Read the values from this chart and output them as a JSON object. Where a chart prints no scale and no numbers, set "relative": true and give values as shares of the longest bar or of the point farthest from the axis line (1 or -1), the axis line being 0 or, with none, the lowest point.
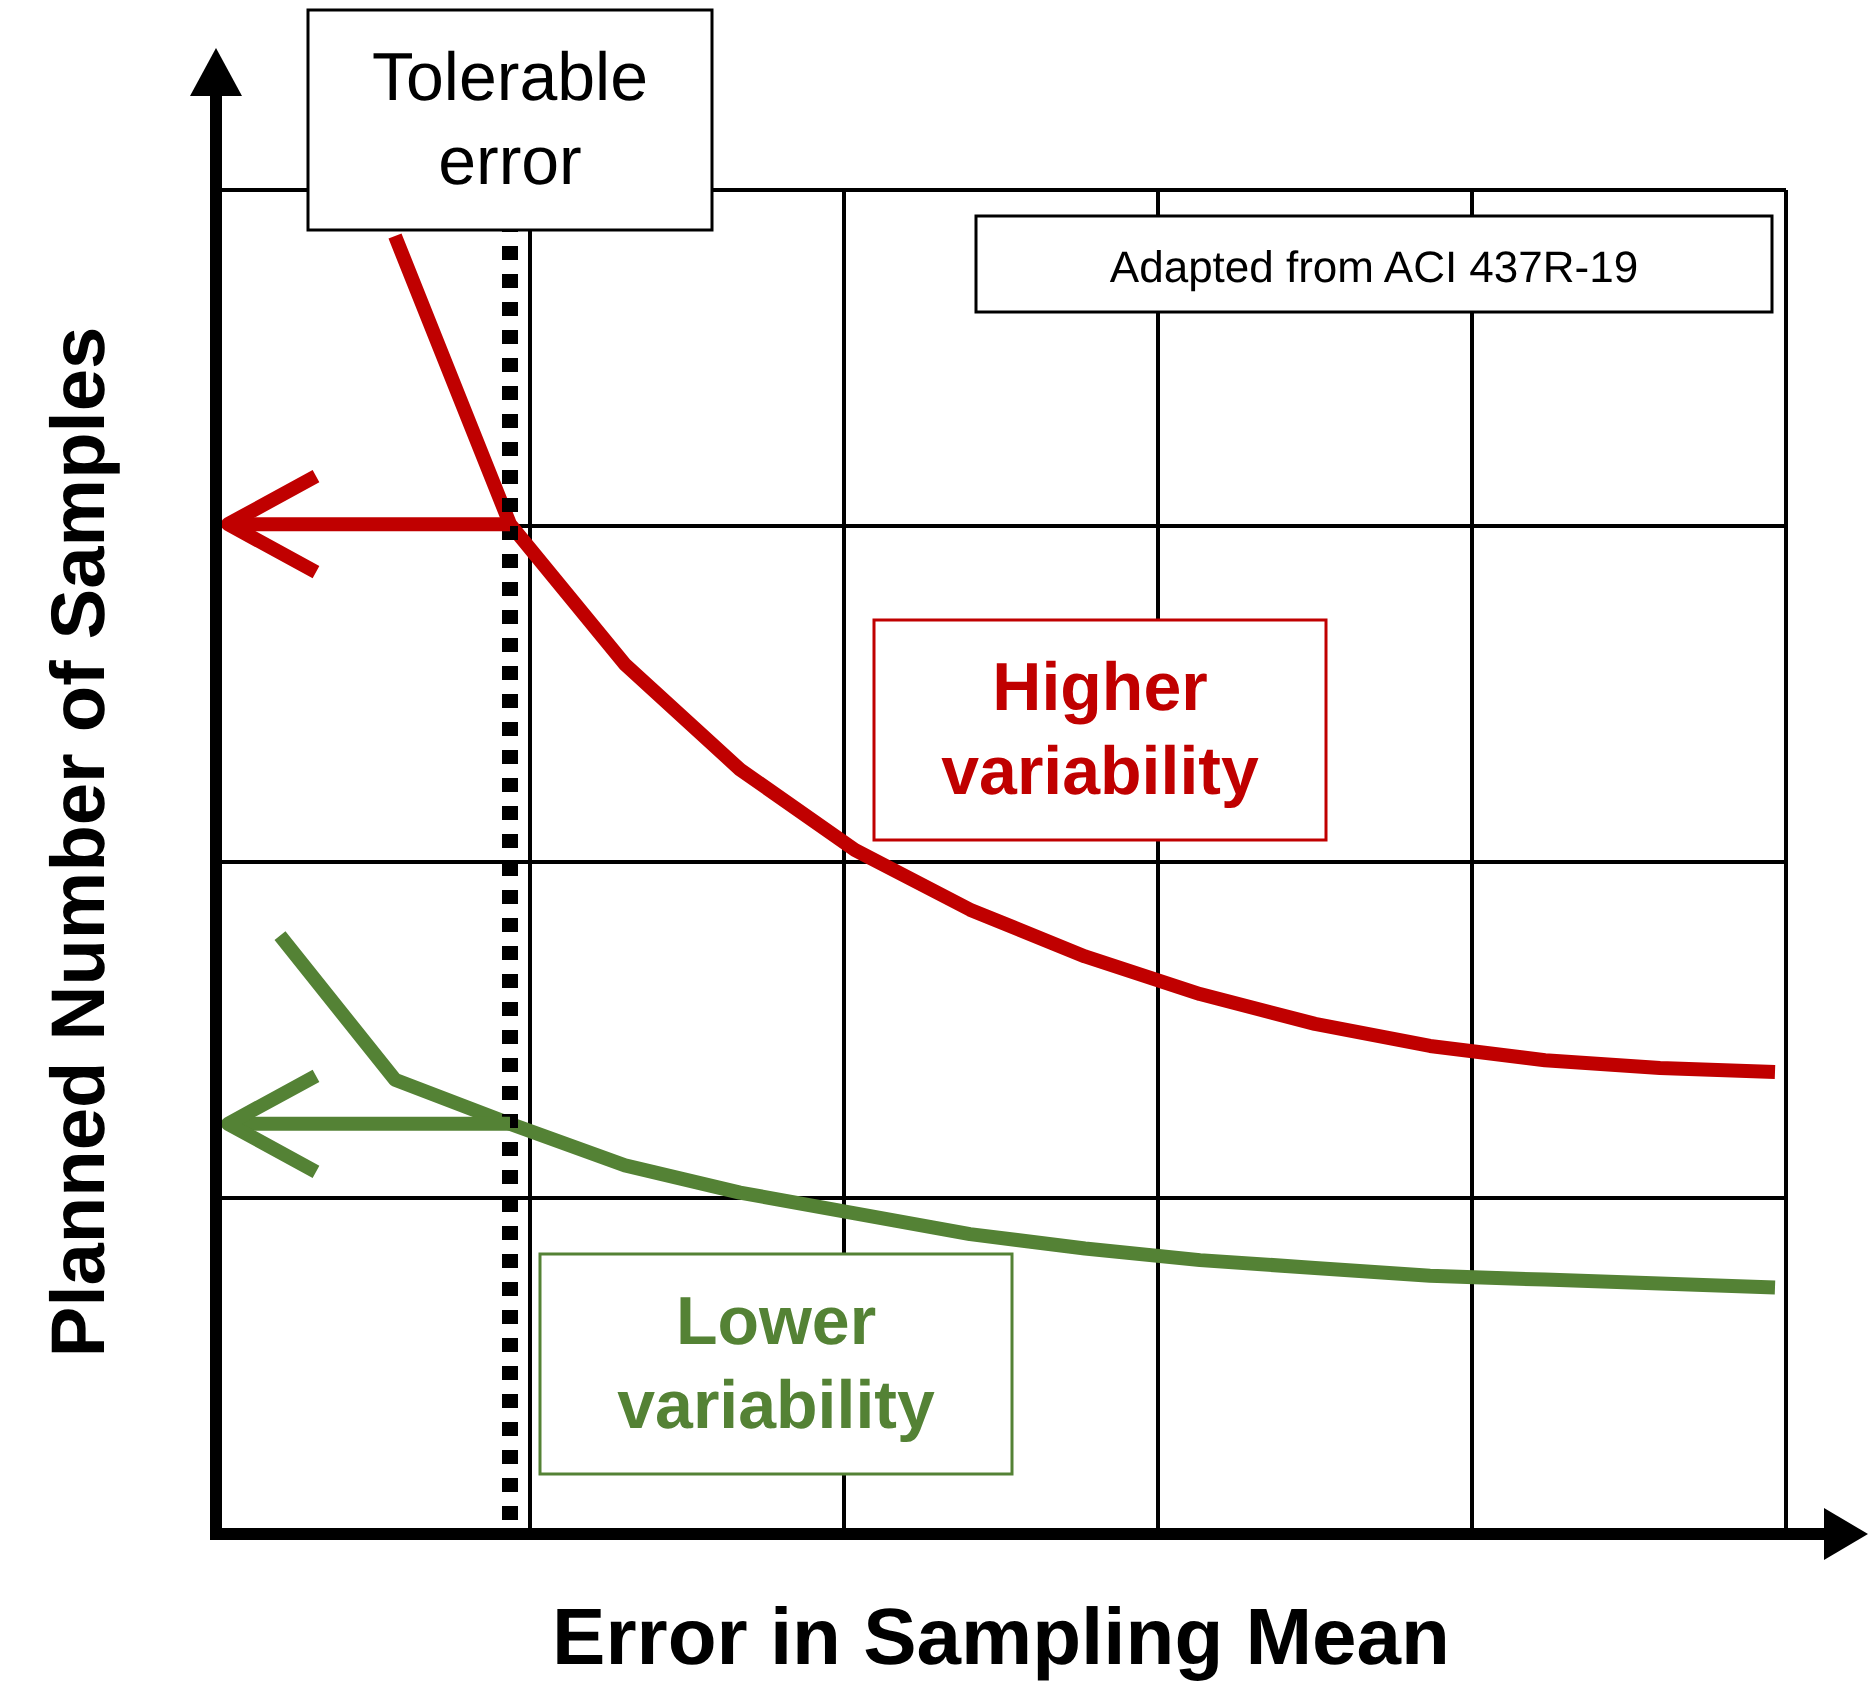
{
  "chart_data": {
    "type": "line",
    "relative": true,
    "xlabel": "Error in Sampling Mean",
    "ylabel": "Planned Number of Samples",
    "categories": [
      null,
      null,
      null,
      null,
      null,
      null,
      null,
      null,
      null,
      null,
      null,
      null,
      null,
      null
    ],
    "grid": true,
    "line_style": "solid",
    "series": [
      {
        "name": "Higher variability",
        "color": "#c00000",
        "values": [
          null,
          1.0,
          0.778,
          0.67,
          0.589,
          0.527,
          0.481,
          0.445,
          0.416,
          0.393,
          0.376,
          0.365,
          0.359,
          0.356
        ]
      },
      {
        "name": "Lower variability",
        "color": "#548235",
        "values": [
          0.461,
          0.35,
          0.316,
          0.284,
          0.263,
          0.247,
          0.231,
          0.22,
          0.211,
          0.205,
          0.199,
          0.196,
          0.193,
          0.19
        ]
      }
    ],
    "annotations": [
      "Tolerable error",
      "Adapted from ACI 437R-19"
    ]
  }
}
